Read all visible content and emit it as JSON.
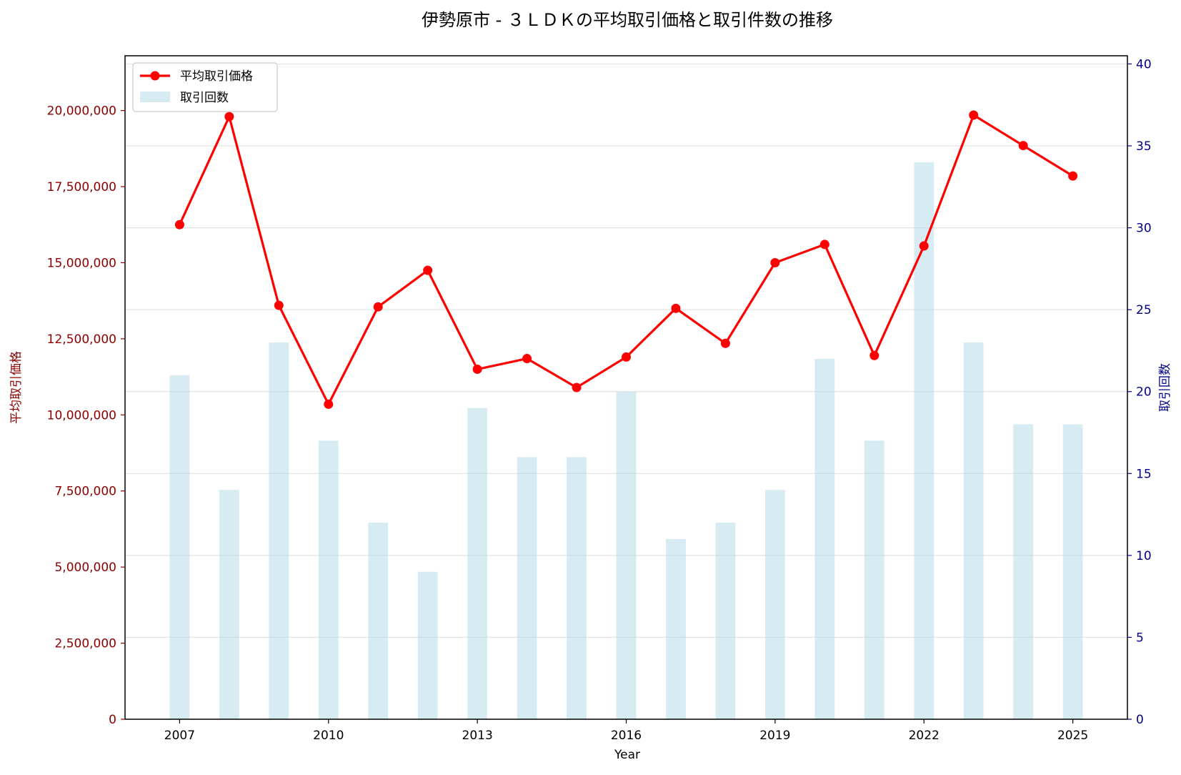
{
  "chart_data": {
    "type": "bar+line",
    "title": "伊勢原市 - ３ＬＤＫの平均取引価格と取引件数の推移",
    "xlabel": "Year",
    "ylabel_left": "平均取引価格",
    "ylabel_right": "取引回数",
    "x": [
      2007,
      2008,
      2009,
      2010,
      2011,
      2012,
      2013,
      2014,
      2015,
      2016,
      2017,
      2018,
      2019,
      2020,
      2021,
      2022,
      2023,
      2024,
      2025
    ],
    "xticks": [
      2007,
      2010,
      2013,
      2016,
      2019,
      2022,
      2025
    ],
    "xlim": [
      2005.9,
      2026.1
    ],
    "series": [
      {
        "name": "平均取引価格",
        "type": "line",
        "axis": "left",
        "color": "#ff0000",
        "values": [
          16250000,
          19800000,
          13600000,
          10350000,
          13550000,
          14750000,
          11500000,
          11850000,
          10900000,
          11900000,
          13500000,
          12350000,
          15000000,
          15600000,
          11950000,
          15550000,
          19850000,
          18850000,
          17850000
        ]
      },
      {
        "name": "取引回数",
        "type": "bar",
        "axis": "right",
        "color": "#add8e6",
        "values": [
          21,
          14,
          23,
          17,
          12,
          9,
          19,
          16,
          16,
          20,
          11,
          12,
          14,
          22,
          17,
          34,
          23,
          18,
          18
        ]
      }
    ],
    "ylim_left": [
      0,
      21800000
    ],
    "yticks_left": [
      "0",
      "2,500,000",
      "5,000,000",
      "7,500,000",
      "10,000,000",
      "12,500,000",
      "15,000,000",
      "17,500,000",
      "20,000,000"
    ],
    "ylim_right": [
      0,
      40.5
    ],
    "yticks_right": [
      "0",
      "5",
      "10",
      "15",
      "20",
      "25",
      "30",
      "35",
      "40"
    ],
    "left_axis_color": "#8b0000",
    "right_axis_color": "#00008b",
    "grid": true,
    "legend_position": "top-left"
  }
}
